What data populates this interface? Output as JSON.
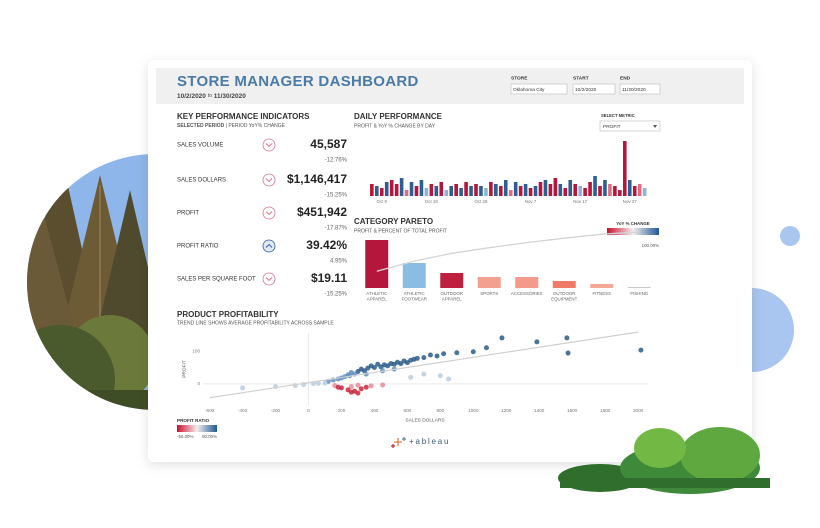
{
  "header": {
    "title": "STORE MANAGER DASHBOARD",
    "date_from": "10/2/2020",
    "date_sep": "to",
    "date_to": "11/30/2020"
  },
  "filters": [
    {
      "label": "STORE",
      "value": "Oklahoma City"
    },
    {
      "label": "START",
      "value": "10/2/2020"
    },
    {
      "label": "END",
      "value": "11/30/2020"
    }
  ],
  "kpi": {
    "title": "KEY PERFORMANCE INDICATORS",
    "subtitle_bold": "SELECTED PERIOD",
    "subtitle_rest": "| PERIOD YoY% CHANGE",
    "items": [
      {
        "label": "SALES VOLUME",
        "value": "45,587",
        "change": "-12.76%",
        "direction": "down"
      },
      {
        "label": "SALES DOLLARS",
        "value": "$1,146,417",
        "change": "-15.25%",
        "direction": "down"
      },
      {
        "label": "PROFIT",
        "value": "$451,942",
        "change": "-17.87%",
        "direction": "down"
      },
      {
        "label": "PROFIT RATIO",
        "value": "39.42%",
        "change": "4.95%",
        "direction": "up"
      },
      {
        "label": "SALES PER SQUARE FOOT",
        "value": "$19.11",
        "change": "-15.25%",
        "direction": "down"
      }
    ]
  },
  "chart_data": [
    {
      "type": "bar",
      "title": "DAILY PERFORMANCE",
      "subtitle": "PROFIT & YoY % CHANGE BY DAY",
      "metric_label": "SELECT METRIC",
      "metric": "PROFIT",
      "categories": [
        null,
        null,
        null,
        null,
        null,
        null,
        "Oct 8",
        null,
        null,
        null,
        null,
        null,
        null,
        null,
        null,
        null,
        "Oct 18",
        null,
        null,
        null,
        null,
        null,
        null,
        null,
        null,
        null,
        "Oct 28",
        null,
        null,
        null,
        null,
        null,
        null,
        null,
        null,
        null,
        "Nov 7",
        null,
        null,
        null,
        null,
        null,
        null,
        null,
        null,
        null,
        "Nov 17",
        null,
        null,
        null,
        null,
        null,
        null,
        null,
        null,
        null,
        "Nov 27",
        null,
        null,
        null
      ],
      "values": [
        null,
        null,
        null,
        null,
        12,
        10,
        8,
        14,
        16,
        12,
        18,
        6,
        14,
        10,
        16,
        8,
        12,
        10,
        14,
        6,
        10,
        12,
        8,
        14,
        10,
        12,
        10,
        8,
        14,
        12,
        10,
        16,
        6,
        14,
        10,
        12,
        8,
        10,
        14,
        16,
        12,
        18,
        12,
        8,
        16,
        12,
        10,
        8,
        14,
        20,
        10,
        16,
        12,
        10,
        6,
        55,
        16,
        10,
        12,
        8
      ],
      "colors": [
        null,
        null,
        null,
        null,
        "#b5173c",
        "#2d5f93",
        "#b5173c",
        "#2d5f93",
        "#b5173c",
        "#b5173c",
        "#2d5f93",
        "#e06a7e",
        "#2d5f93",
        "#b5173c",
        "#2d5f93",
        "#8db4d8",
        "#b5173c",
        "#2d5f93",
        "#b5173c",
        "#8db4d8",
        "#2d5f93",
        "#b5173c",
        "#2d5f93",
        "#b5173c",
        "#2d5f93",
        "#b5173c",
        "#2d5f93",
        "#8db4d8",
        "#b5173c",
        "#2d5f93",
        "#b5173c",
        "#2d5f93",
        "#e06a7e",
        "#2d5f93",
        "#b5173c",
        "#2d5f93",
        "#b5173c",
        "#2d5f93",
        "#b5173c",
        "#2d5f93",
        "#b5173c",
        "#b5173c",
        "#2d5f93",
        "#b5173c",
        "#2d5f93",
        "#b5173c",
        "#8db4d8",
        "#b5173c",
        "#b5173c",
        "#2d5f93",
        "#b5173c",
        "#2d5f93",
        "#e06a7e",
        "#b5173c",
        "#b5173c",
        "#b5173c",
        "#2d5f93",
        "#b5173c",
        "#e06a7e",
        "#8db4d8"
      ]
    },
    {
      "type": "pareto",
      "title": "CATEGORY PARETO",
      "subtitle": "PROFIT & PERCENT OF TOTAL PROFIT",
      "categories": [
        "ATHLETIC APPAREL",
        "ATHLETIC FOOTWEAR",
        "OUTDOOR APPAREL",
        "SPORTS",
        "ACCESSORIES",
        "OUTDOOR EQUIPMENT",
        "FITNESS",
        "FISHING"
      ],
      "values": [
        48,
        25,
        15,
        11,
        11,
        7,
        4,
        1
      ],
      "colors": [
        "#b5173c",
        "#8bbde3",
        "#c0203f",
        "#f4a090",
        "#f39a8a",
        "#f07a68",
        "#f6a896",
        "#c9c9c9"
      ],
      "cumulative": [
        30,
        48,
        62,
        72,
        81,
        89,
        96,
        100
      ],
      "line_color": "#d4d4d4",
      "legend_title": "YoY % CHANGE",
      "legend_label": "100.00%"
    },
    {
      "type": "scatter",
      "title": "PRODUCT PROFITABILITY",
      "subtitle": "TREND LINE SHOWS AVERAGE PROFITABILITY ACROSS SAMPLE",
      "x_label": "SALES DOLLARS",
      "y_label": "PROFIT",
      "xlim": [
        -640,
        2060
      ],
      "ylim": [
        -64,
        155
      ],
      "xticks": [
        -600,
        -400,
        -200,
        0,
        200,
        400,
        600,
        800,
        1000,
        1200,
        1400,
        1600,
        1800,
        2000
      ],
      "yticks": [
        0,
        100
      ],
      "x": [
        380,
        420,
        460,
        500,
        540,
        580,
        620,
        660,
        700,
        440,
        480,
        520,
        360,
        340,
        300,
        320,
        400,
        560,
        600,
        640,
        740,
        780,
        820,
        900,
        1000,
        1386,
        1568,
        1575,
        1174,
        2017,
        1080,
        250,
        280,
        260,
        220,
        200,
        180,
        150,
        120,
        240,
        350,
        450,
        520,
        100,
        60,
        30,
        -30,
        -80,
        -200,
        -400,
        700,
        800,
        850,
        620,
        160,
        260,
        380,
        450,
        300,
        200,
        240,
        280,
        320,
        180,
        350,
        260,
        300
      ],
      "y": [
        55,
        60,
        58,
        62,
        66,
        70,
        72,
        78,
        80,
        52,
        55,
        60,
        48,
        40,
        38,
        45,
        50,
        62,
        65,
        75,
        88,
        85,
        92,
        95,
        98,
        128,
        140,
        94,
        140,
        103,
        110,
        25,
        30,
        35,
        22,
        18,
        15,
        12,
        8,
        28,
        30,
        40,
        45,
        3,
        2,
        1,
        -2,
        -5,
        -8,
        -12,
        30,
        25,
        15,
        20,
        -5,
        -8,
        -6,
        -3,
        -4,
        -12,
        -18,
        -22,
        -15,
        -10,
        -10,
        -25,
        -28
      ],
      "colors": [
        "#2b5c8a",
        "#2b5c8a",
        "#2b5c8a",
        "#2b5c8a",
        "#2b5c8a",
        "#2b5c8a",
        "#2b5c8a",
        "#2b5c8a",
        "#2b5c8a",
        "#2b5c8a",
        "#2b5c8a",
        "#2b5c8a",
        "#2b5c8a",
        "#2b5c8a",
        "#2b5c8a",
        "#2b5c8a",
        "#2b5c8a",
        "#2b5c8a",
        "#2b5c8a",
        "#2b5c8a",
        "#2b5c8a",
        "#2b5c8a",
        "#2b5c8a",
        "#2b5c8a",
        "#2b5c8a",
        "#2b5c8a",
        "#2b5c8a",
        "#2b5c8a",
        "#2b5c8a",
        "#2b5c8a",
        "#2b5c8a",
        "#5f8fbf",
        "#5f8fbf",
        "#5f8fbf",
        "#5f8fbf",
        "#5f8fbf",
        "#5f8fbf",
        "#5f8fbf",
        "#5f8fbf",
        "#5f8fbf",
        "#5f8fbf",
        "#5f8fbf",
        "#5f8fbf",
        "#b9cde0",
        "#b9cde0",
        "#b9cde0",
        "#b9cde0",
        "#b9cde0",
        "#b9cde0",
        "#b9cde0",
        "#b9cde0",
        "#b9cde0",
        "#b9cde0",
        "#b9cde0",
        "#e58c99",
        "#e58c99",
        "#e58c99",
        "#e58c99",
        "#e58c99",
        "#c8283b",
        "#c8283b",
        "#c8283b",
        "#c8283b",
        "#c8283b",
        "#c8283b",
        "#c8283b",
        "#c8283b"
      ],
      "trend": {
        "x": [
          -600,
          2000
        ],
        "y": [
          -42,
          158
        ]
      },
      "trend_color": "#cfcfcf",
      "legend_title": "PROFIT RATIO",
      "legend_min": "-50.00%",
      "legend_max": "50.00%"
    }
  ],
  "logo": "+ableau"
}
